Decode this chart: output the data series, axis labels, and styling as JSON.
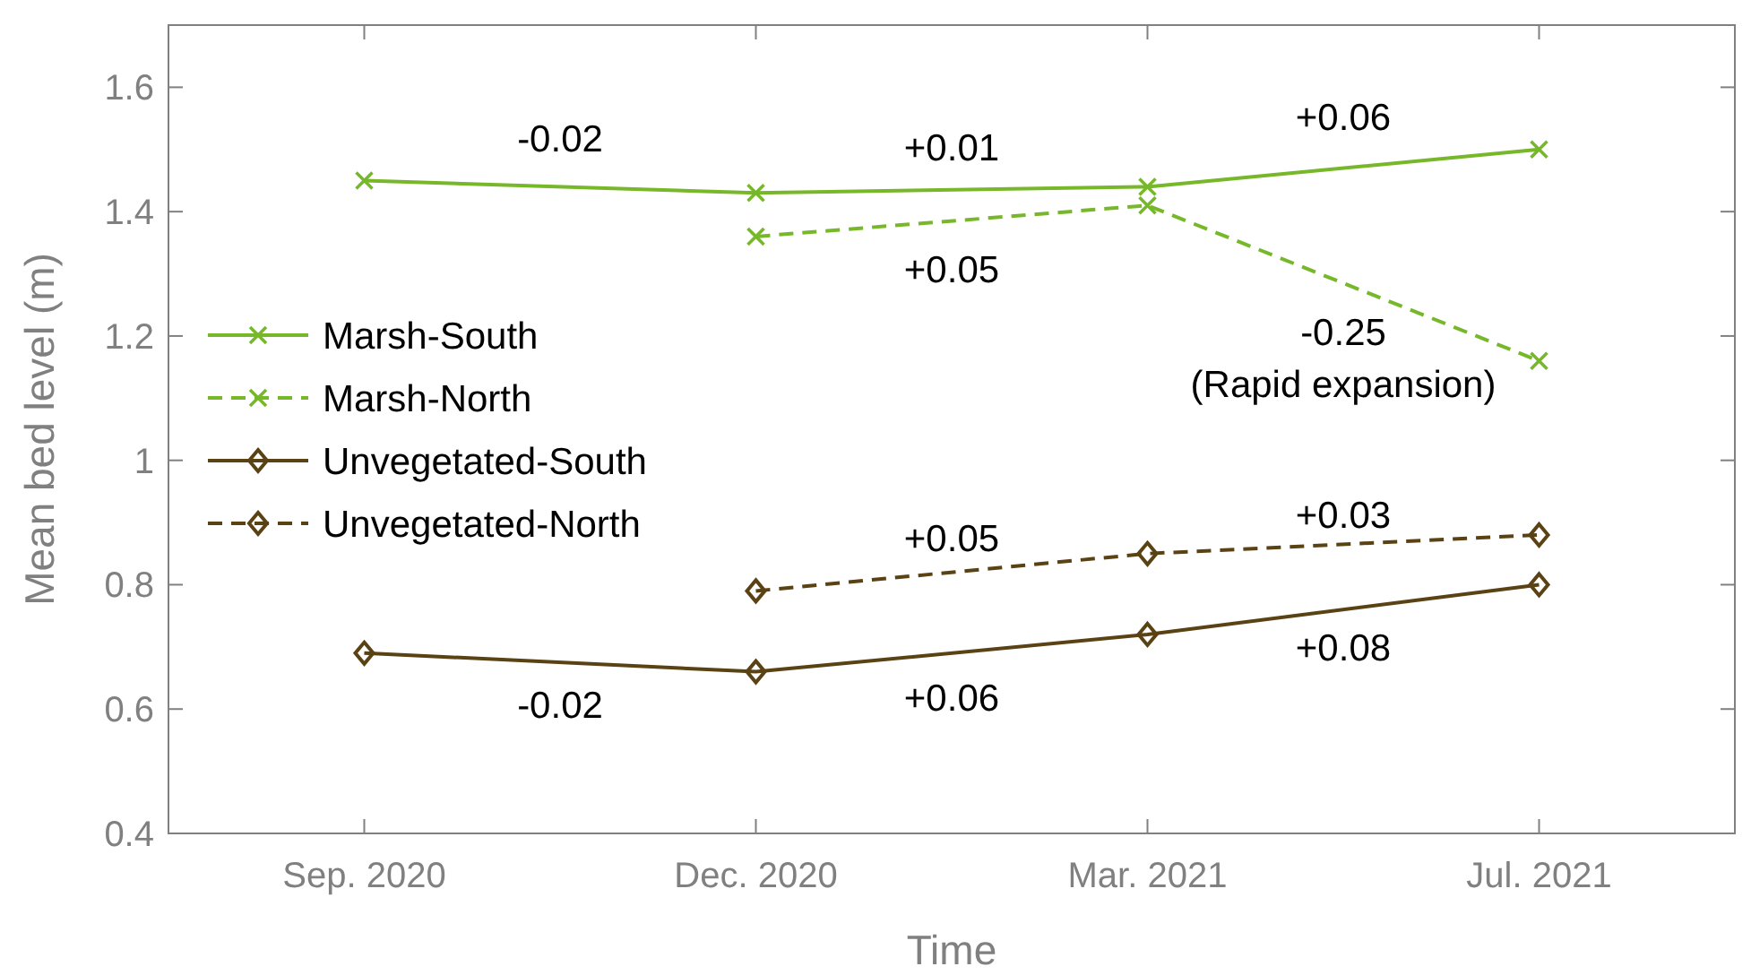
{
  "chart_data": {
    "type": "line",
    "xlabel": "Time",
    "ylabel": "Mean bed level (m)",
    "categories": [
      "Sep. 2020",
      "Dec. 2020",
      "Mar. 2021",
      "Jul. 2021"
    ],
    "ylim": [
      0.4,
      1.7
    ],
    "yticks": [
      0.4,
      0.6,
      0.8,
      1,
      1.2,
      1.4,
      1.6
    ],
    "grid": false,
    "legend": "left",
    "series": [
      {
        "name": "Marsh-South",
        "color": "#77b82a",
        "marker": "cross",
        "line_style": "solid",
        "values": [
          1.45,
          1.43,
          1.44,
          1.5
        ]
      },
      {
        "name": "Marsh-North",
        "color": "#77b82a",
        "marker": "cross",
        "line_style": "dashed",
        "values": [
          null,
          1.36,
          1.41,
          1.16
        ]
      },
      {
        "name": "Unvegetated-South",
        "color": "#5a4214",
        "marker": "diamond",
        "line_style": "solid",
        "values": [
          0.69,
          0.66,
          0.72,
          0.8
        ]
      },
      {
        "name": "Unvegetated-North",
        "color": "#5a4214",
        "marker": "diamond",
        "line_style": "dashed",
        "values": [
          null,
          0.79,
          0.85,
          0.88
        ]
      }
    ],
    "annotations": [
      "-0.02",
      "+0.01",
      "+0.06",
      "+0.05",
      "-0.25",
      "(Rapid expansion)",
      "+0.05",
      "+0.03",
      "-0.02",
      "+0.06",
      "+0.08"
    ]
  }
}
